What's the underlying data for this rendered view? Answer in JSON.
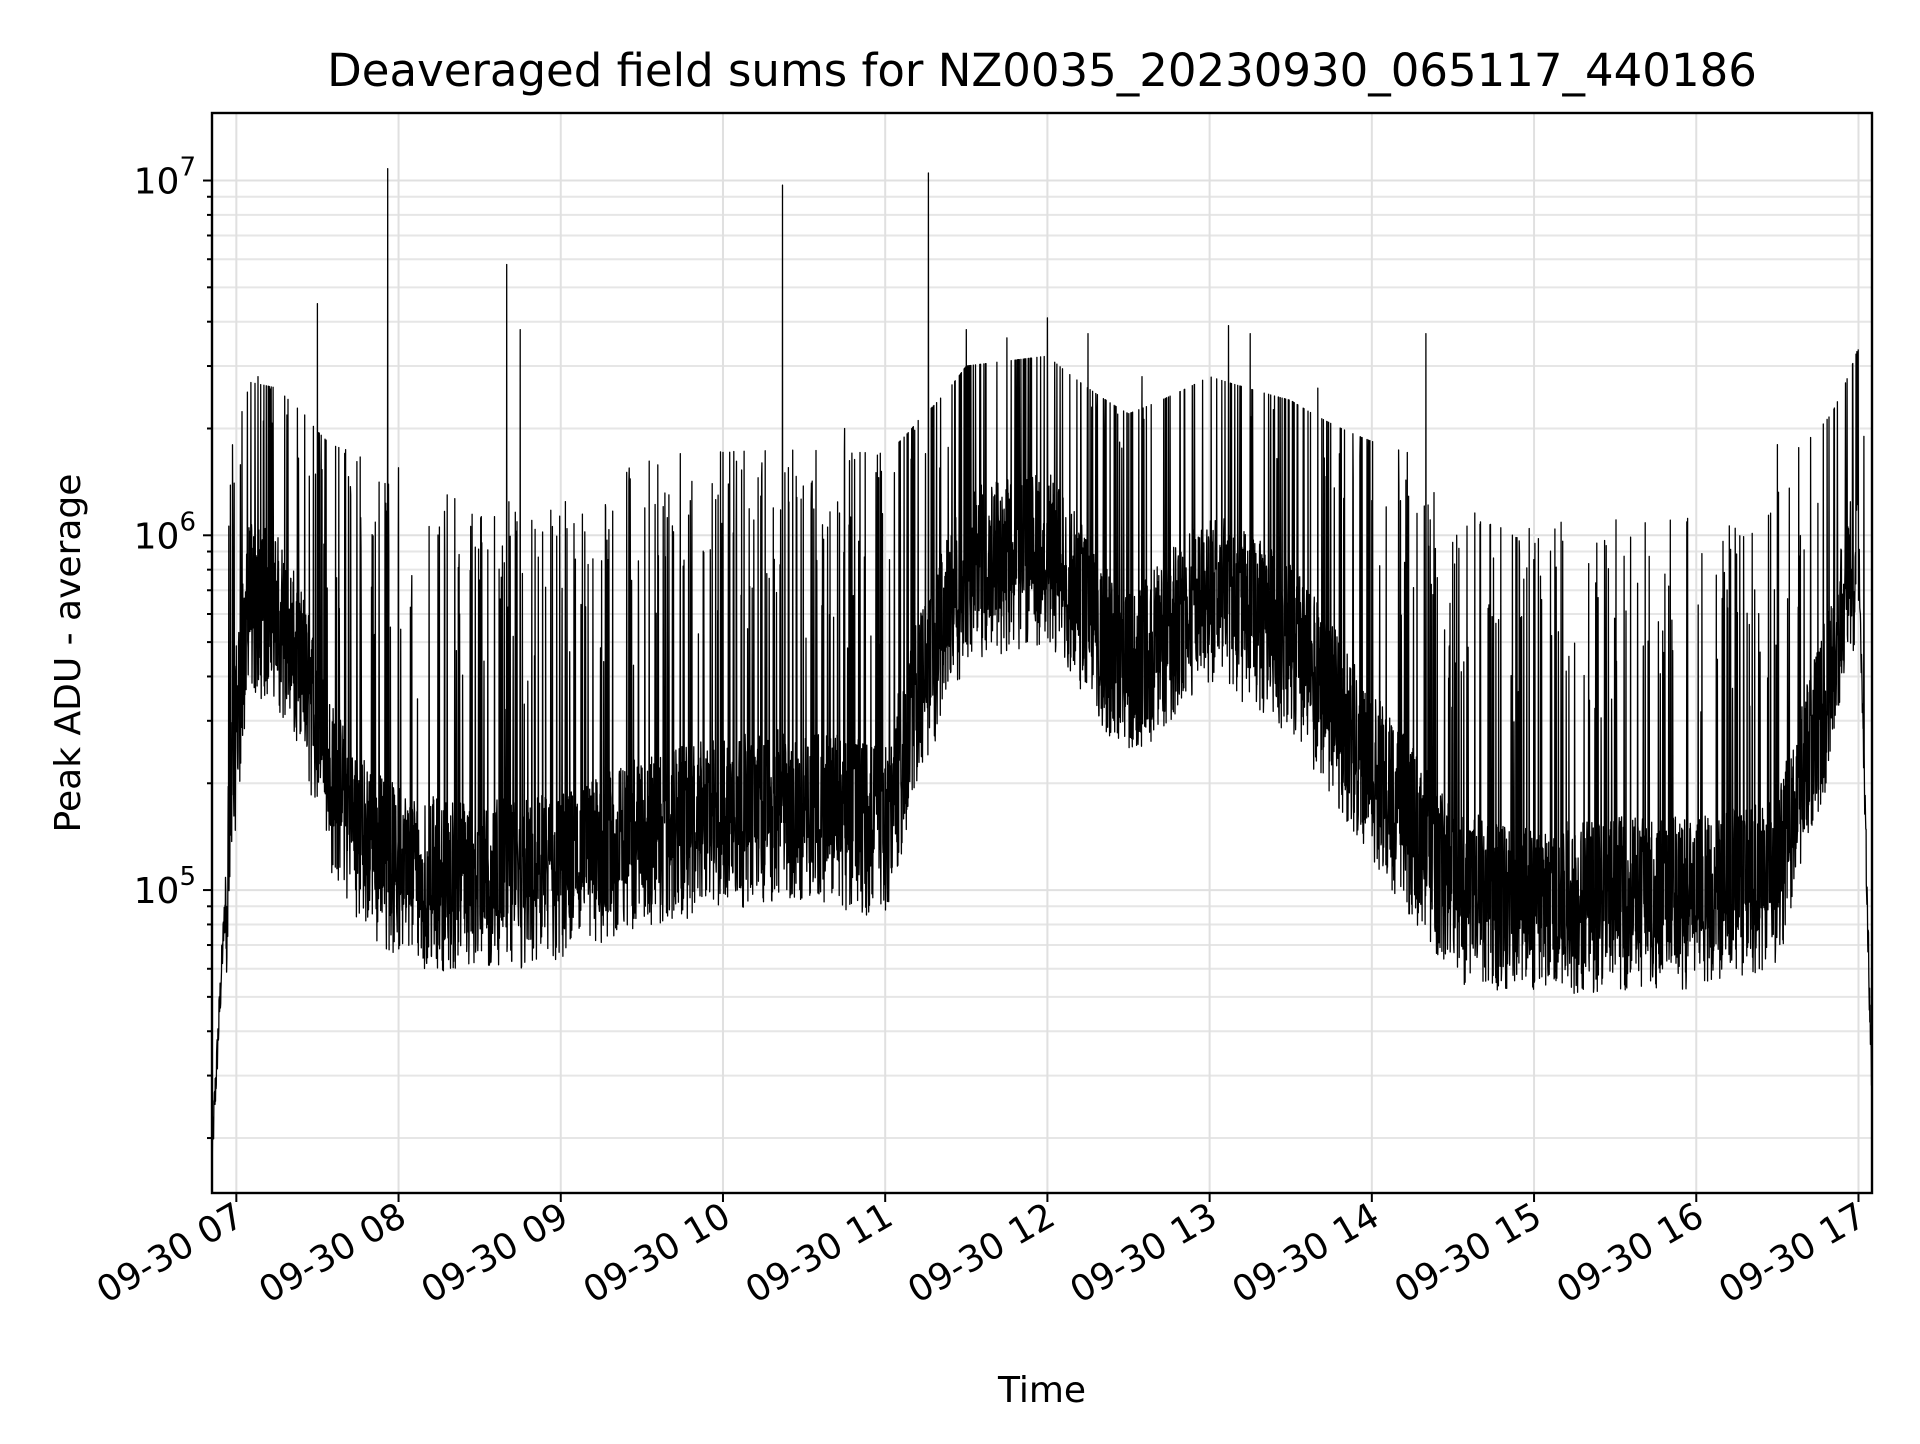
{
  "chart_data": {
    "type": "line",
    "title": "Deaveraged field sums for NZ0035_20230930_065117_440186",
    "xlabel": "Time",
    "ylabel": "Peak ADU - average",
    "yscale": "log",
    "ylim": [
      14000,
      15500000
    ],
    "xlim": [
      "2023-09-30 06:51",
      "2023-09-30 17:05"
    ],
    "grid": true,
    "line_color": "#000000",
    "x_ticks": [
      {
        "t": "2023-09-30 07:00",
        "label": "09-30 07"
      },
      {
        "t": "2023-09-30 08:00",
        "label": "09-30 08"
      },
      {
        "t": "2023-09-30 09:00",
        "label": "09-30 09"
      },
      {
        "t": "2023-09-30 10:00",
        "label": "09-30 10"
      },
      {
        "t": "2023-09-30 11:00",
        "label": "09-30 11"
      },
      {
        "t": "2023-09-30 12:00",
        "label": "09-30 12"
      },
      {
        "t": "2023-09-30 13:00",
        "label": "09-30 13"
      },
      {
        "t": "2023-09-30 14:00",
        "label": "09-30 14"
      },
      {
        "t": "2023-09-30 15:00",
        "label": "09-30 15"
      },
      {
        "t": "2023-09-30 16:00",
        "label": "09-30 16"
      },
      {
        "t": "2023-09-30 17:00",
        "label": "09-30 17"
      }
    ],
    "y_ticks": [
      {
        "value": 100000,
        "base": "10",
        "exp": "5"
      },
      {
        "value": 1000000,
        "base": "10",
        "exp": "6"
      },
      {
        "value": 10000000,
        "base": "10",
        "exp": "7"
      }
    ],
    "series": [
      {
        "baseline": [
          {
            "t": "2023-09-30 06:51",
            "y": 18000
          },
          {
            "t": "2023-09-30 06:55",
            "y": 70000
          },
          {
            "t": "2023-09-30 07:00",
            "y": 300000
          },
          {
            "t": "2023-09-30 07:05",
            "y": 650000
          },
          {
            "t": "2023-09-30 07:15",
            "y": 600000
          },
          {
            "t": "2023-09-30 07:25",
            "y": 400000
          },
          {
            "t": "2023-09-30 07:35",
            "y": 200000
          },
          {
            "t": "2023-09-30 07:50",
            "y": 130000
          },
          {
            "t": "2023-09-30 08:05",
            "y": 110000
          },
          {
            "t": "2023-09-30 08:30",
            "y": 105000
          },
          {
            "t": "2023-09-30 09:00",
            "y": 110000
          },
          {
            "t": "2023-09-30 09:30",
            "y": 140000
          },
          {
            "t": "2023-09-30 10:00",
            "y": 160000
          },
          {
            "t": "2023-09-30 10:30",
            "y": 170000
          },
          {
            "t": "2023-09-30 11:00",
            "y": 150000
          },
          {
            "t": "2023-09-30 11:12",
            "y": 350000
          },
          {
            "t": "2023-09-30 11:30",
            "y": 800000
          },
          {
            "t": "2023-09-30 12:00",
            "y": 900000
          },
          {
            "t": "2023-09-30 12:30",
            "y": 400000
          },
          {
            "t": "2023-09-30 13:00",
            "y": 700000
          },
          {
            "t": "2023-09-30 13:30",
            "y": 500000
          },
          {
            "t": "2023-09-30 14:00",
            "y": 220000
          },
          {
            "t": "2023-09-30 14:30",
            "y": 100000
          },
          {
            "t": "2023-09-30 15:00",
            "y": 90000
          },
          {
            "t": "2023-09-30 15:30",
            "y": 95000
          },
          {
            "t": "2023-09-30 16:00",
            "y": 95000
          },
          {
            "t": "2023-09-30 16:30",
            "y": 110000
          },
          {
            "t": "2023-09-30 16:50",
            "y": 400000
          },
          {
            "t": "2023-09-30 17:00",
            "y": 1000000
          },
          {
            "t": "2023-09-30 17:05",
            "y": 26000
          }
        ],
        "peaks": [
          {
            "t": "2023-09-30 07:08",
            "y": 2800000
          },
          {
            "t": "2023-09-30 07:10",
            "y": 2100000
          },
          {
            "t": "2023-09-30 07:23",
            "y": 1650000
          },
          {
            "t": "2023-09-30 07:30",
            "y": 4500000
          },
          {
            "t": "2023-09-30 07:55",
            "y": 1400000
          },
          {
            "t": "2023-09-30 07:56",
            "y": 10800000
          },
          {
            "t": "2023-09-30 08:00",
            "y": 1550000
          },
          {
            "t": "2023-09-30 08:18",
            "y": 1300000
          },
          {
            "t": "2023-09-30 08:40",
            "y": 5800000
          },
          {
            "t": "2023-09-30 08:45",
            "y": 3800000
          },
          {
            "t": "2023-09-30 09:40",
            "y": 1300000
          },
          {
            "t": "2023-09-30 10:22",
            "y": 9700000
          },
          {
            "t": "2023-09-30 10:45",
            "y": 2000000
          },
          {
            "t": "2023-09-30 11:16",
            "y": 10500000
          },
          {
            "t": "2023-09-30 11:30",
            "y": 3800000
          },
          {
            "t": "2023-09-30 11:45",
            "y": 3600000
          },
          {
            "t": "2023-09-30 12:00",
            "y": 4100000
          },
          {
            "t": "2023-09-30 12:15",
            "y": 3700000
          },
          {
            "t": "2023-09-30 12:35",
            "y": 2800000
          },
          {
            "t": "2023-09-30 13:07",
            "y": 3900000
          },
          {
            "t": "2023-09-30 13:15",
            "y": 3700000
          },
          {
            "t": "2023-09-30 13:40",
            "y": 2600000
          },
          {
            "t": "2023-09-30 14:20",
            "y": 3700000
          },
          {
            "t": "2023-09-30 16:30",
            "y": 1800000
          },
          {
            "t": "2023-09-30 17:02",
            "y": 1900000
          }
        ]
      }
    ]
  }
}
